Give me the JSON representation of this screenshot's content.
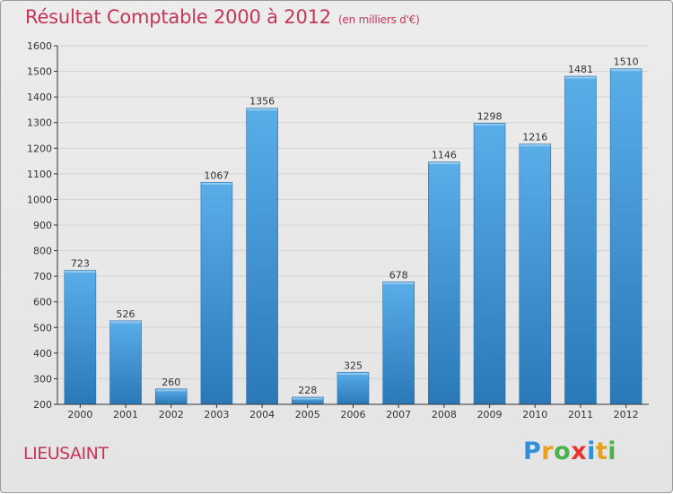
{
  "header": {
    "title": "Résultat Comptable 2000 à 2012",
    "subtitle": "(en milliers d'€)"
  },
  "footer": {
    "commune": "LIEUSAINT"
  },
  "logo": {
    "text": "Proxiti",
    "letters": [
      {
        "char": "P",
        "color": "#2f8fd8"
      },
      {
        "char": "r",
        "color": "#e8a21a"
      },
      {
        "char": "o",
        "color": "#4cb34a"
      },
      {
        "char": "x",
        "color": "#e8342c"
      },
      {
        "char": "i",
        "color": "#2f8fd8"
      },
      {
        "char": "t",
        "color": "#e8a21a"
      },
      {
        "char": "i",
        "color": "#4cb34a"
      }
    ]
  },
  "colors": {
    "title": "#c4365a",
    "bar_top": "#5aaee8",
    "bar_bottom": "#2a78b8",
    "axis": "#333333",
    "grid": "#d2d2d2"
  },
  "chart_data": {
    "type": "bar",
    "categories": [
      "2000",
      "2001",
      "2002",
      "2003",
      "2004",
      "2005",
      "2006",
      "2007",
      "2008",
      "2009",
      "2010",
      "2011",
      "2012"
    ],
    "values": [
      723,
      526,
      260,
      1067,
      1356,
      228,
      325,
      678,
      1146,
      1298,
      1216,
      1481,
      1510
    ],
    "ylim": [
      200,
      1600
    ],
    "yticks": [
      200,
      300,
      400,
      500,
      600,
      700,
      800,
      900,
      1000,
      1100,
      1200,
      1300,
      1400,
      1500,
      1600
    ],
    "grid": true
  }
}
